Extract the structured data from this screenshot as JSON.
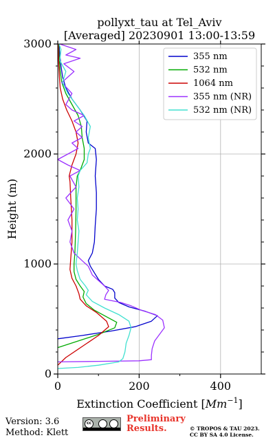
{
  "chart_data": {
    "type": "line",
    "title": "pollyxt_tau at Tel_Aviv",
    "subtitle": "[Averaged] 20230901 13:00-13:59",
    "xlabel": "Extinction Coefficient [Mm⁻¹]",
    "xlabel_main": "Extinction Coefficient [",
    "xlabel_unit": "Mm",
    "xlabel_exp": "−1",
    "xlabel_close": "]",
    "ylabel": "Height (m)",
    "xlim": [
      0,
      500
    ],
    "ylim": [
      0,
      3000
    ],
    "xticks": [
      0,
      200,
      400
    ],
    "yticks": [
      0,
      1000,
      2000,
      3000
    ],
    "xtick_labels": [
      "0",
      "200",
      "400"
    ],
    "ytick_labels": [
      "0",
      "1000",
      "2000",
      "3000"
    ],
    "grid": true,
    "legend": "top-right",
    "series": [
      {
        "name": "355 nm",
        "color": "#0000cc",
        "points": [
          [
            0,
            320
          ],
          [
            60,
            350
          ],
          [
            130,
            390
          ],
          [
            190,
            430
          ],
          [
            230,
            480
          ],
          [
            245,
            530
          ],
          [
            215,
            570
          ],
          [
            175,
            610
          ],
          [
            150,
            650
          ],
          [
            140,
            690
          ],
          [
            140,
            740
          ],
          [
            135,
            770
          ],
          [
            115,
            800
          ],
          [
            100,
            860
          ],
          [
            90,
            920
          ],
          [
            80,
            980
          ],
          [
            75,
            1030
          ],
          [
            85,
            1100
          ],
          [
            90,
            1200
          ],
          [
            92,
            1350
          ],
          [
            95,
            1500
          ],
          [
            95,
            1650
          ],
          [
            92,
            1800
          ],
          [
            95,
            1950
          ],
          [
            92,
            2050
          ],
          [
            75,
            2100
          ],
          [
            70,
            2200
          ],
          [
            72,
            2300
          ],
          [
            55,
            2400
          ],
          [
            35,
            2500
          ],
          [
            20,
            2600
          ],
          [
            12,
            2700
          ],
          [
            8,
            2800
          ],
          [
            5,
            2900
          ],
          [
            3,
            3000
          ]
        ]
      },
      {
        "name": "532 nm",
        "color": "#00aa00",
        "points": [
          [
            0,
            240
          ],
          [
            50,
            300
          ],
          [
            100,
            360
          ],
          [
            140,
            420
          ],
          [
            145,
            470
          ],
          [
            120,
            520
          ],
          [
            90,
            580
          ],
          [
            70,
            640
          ],
          [
            62,
            700
          ],
          [
            65,
            750
          ],
          [
            55,
            800
          ],
          [
            45,
            860
          ],
          [
            40,
            930
          ],
          [
            40,
            1000
          ],
          [
            42,
            1100
          ],
          [
            44,
            1300
          ],
          [
            45,
            1500
          ],
          [
            45,
            1700
          ],
          [
            48,
            1800
          ],
          [
            55,
            1850
          ],
          [
            65,
            1950
          ],
          [
            65,
            2050
          ],
          [
            60,
            2150
          ],
          [
            58,
            2250
          ],
          [
            50,
            2350
          ],
          [
            35,
            2450
          ],
          [
            20,
            2550
          ],
          [
            10,
            2650
          ],
          [
            6,
            2750
          ],
          [
            3,
            2900
          ],
          [
            2,
            3000
          ]
        ]
      },
      {
        "name": "1064 nm",
        "color": "#cc0000",
        "points": [
          [
            0,
            80
          ],
          [
            20,
            150
          ],
          [
            60,
            250
          ],
          [
            100,
            350
          ],
          [
            125,
            430
          ],
          [
            120,
            480
          ],
          [
            95,
            560
          ],
          [
            70,
            620
          ],
          [
            55,
            680
          ],
          [
            52,
            730
          ],
          [
            45,
            800
          ],
          [
            35,
            870
          ],
          [
            30,
            950
          ],
          [
            32,
            1050
          ],
          [
            35,
            1200
          ],
          [
            35,
            1400
          ],
          [
            32,
            1600
          ],
          [
            30,
            1750
          ],
          [
            28,
            1800
          ],
          [
            35,
            1900
          ],
          [
            45,
            2000
          ],
          [
            50,
            2100
          ],
          [
            45,
            2200
          ],
          [
            35,
            2300
          ],
          [
            22,
            2400
          ],
          [
            12,
            2500
          ],
          [
            6,
            2600
          ],
          [
            4,
            2700
          ],
          [
            2,
            2850
          ],
          [
            1,
            3000
          ]
        ]
      },
      {
        "name": "355 nm (NR)",
        "color": "#9b30ff",
        "points": [
          [
            0,
            110
          ],
          [
            100,
            115
          ],
          [
            200,
            120
          ],
          [
            230,
            130
          ],
          [
            230,
            170
          ],
          [
            232,
            230
          ],
          [
            238,
            300
          ],
          [
            250,
            360
          ],
          [
            262,
            420
          ],
          [
            258,
            490
          ],
          [
            240,
            540
          ],
          [
            205,
            580
          ],
          [
            180,
            620
          ],
          [
            155,
            650
          ],
          [
            115,
            680
          ],
          [
            118,
            720
          ],
          [
            125,
            760
          ],
          [
            115,
            800
          ],
          [
            100,
            850
          ],
          [
            85,
            900
          ],
          [
            80,
            940
          ],
          [
            75,
            980
          ],
          [
            60,
            1030
          ],
          [
            40,
            1100
          ],
          [
            30,
            1200
          ],
          [
            35,
            1300
          ],
          [
            25,
            1400
          ],
          [
            40,
            1500
          ],
          [
            20,
            1600
          ],
          [
            45,
            1700
          ],
          [
            30,
            1800
          ],
          [
            55,
            1850
          ],
          [
            25,
            1900
          ],
          [
            0,
            1950
          ],
          [
            25,
            2000
          ],
          [
            50,
            2050
          ],
          [
            35,
            2100
          ],
          [
            60,
            2150
          ],
          [
            45,
            2200
          ],
          [
            60,
            2250
          ],
          [
            40,
            2300
          ],
          [
            65,
            2350
          ],
          [
            35,
            2400
          ],
          [
            20,
            2450
          ],
          [
            35,
            2550
          ],
          [
            10,
            2650
          ],
          [
            40,
            2750
          ],
          [
            15,
            2820
          ],
          [
            55,
            2870
          ],
          [
            20,
            2900
          ],
          [
            45,
            2950
          ],
          [
            5,
            3000
          ]
        ]
      },
      {
        "name": "532 nm (NR)",
        "color": "#40e0d0",
        "points": [
          [
            0,
            50
          ],
          [
            50,
            60
          ],
          [
            100,
            80
          ],
          [
            150,
            110
          ],
          [
            160,
            140
          ],
          [
            165,
            200
          ],
          [
            168,
            280
          ],
          [
            175,
            350
          ],
          [
            180,
            420
          ],
          [
            175,
            480
          ],
          [
            150,
            540
          ],
          [
            115,
            600
          ],
          [
            85,
            660
          ],
          [
            70,
            720
          ],
          [
            75,
            760
          ],
          [
            68,
            800
          ],
          [
            55,
            860
          ],
          [
            48,
            940
          ],
          [
            45,
            1000
          ],
          [
            48,
            1100
          ],
          [
            50,
            1200
          ],
          [
            52,
            1300
          ],
          [
            48,
            1400
          ],
          [
            50,
            1500
          ],
          [
            48,
            1600
          ],
          [
            52,
            1700
          ],
          [
            50,
            1800
          ],
          [
            55,
            1850
          ],
          [
            72,
            1920
          ],
          [
            75,
            2000
          ],
          [
            80,
            2050
          ],
          [
            75,
            2150
          ],
          [
            80,
            2250
          ],
          [
            65,
            2350
          ],
          [
            45,
            2450
          ],
          [
            25,
            2550
          ],
          [
            12,
            2650
          ],
          [
            20,
            2750
          ],
          [
            5,
            2850
          ],
          [
            8,
            2950
          ],
          [
            3,
            3000
          ]
        ]
      }
    ]
  },
  "footer": {
    "version": "Version: 3.6",
    "method": "Method: Klett",
    "prelim_line1": "Preliminary",
    "prelim_line2": "Results.",
    "copyright_line1": "© TROPOS & TAU 2023.",
    "copyright_line2": "CC BY SA 4.0 License."
  },
  "license_badge": {
    "icon": "cc-by-sa-icon",
    "cc_label": "cc",
    "by_label": "BY",
    "sa_label": "SA"
  }
}
